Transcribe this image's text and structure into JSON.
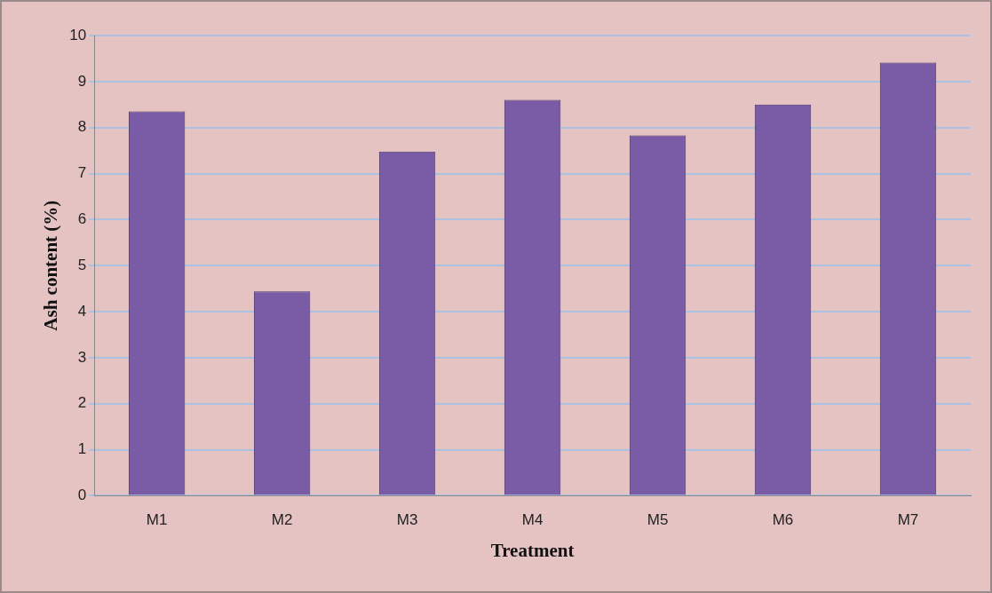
{
  "chart_data": {
    "type": "bar",
    "xlabel": "Treatment",
    "ylabel": "Ash content (%)",
    "categories": [
      "M1",
      "M2",
      "M3",
      "M4",
      "M5",
      "M6",
      "M7"
    ],
    "values": [
      8.35,
      4.44,
      7.48,
      8.6,
      7.83,
      8.5,
      9.41
    ],
    "color": "#7a5ca6",
    "ylim": [
      0,
      10
    ],
    "yticks": [
      0,
      1,
      2,
      3,
      4,
      5,
      6,
      7,
      8,
      9,
      10
    ],
    "grid": "y",
    "legend": false
  }
}
